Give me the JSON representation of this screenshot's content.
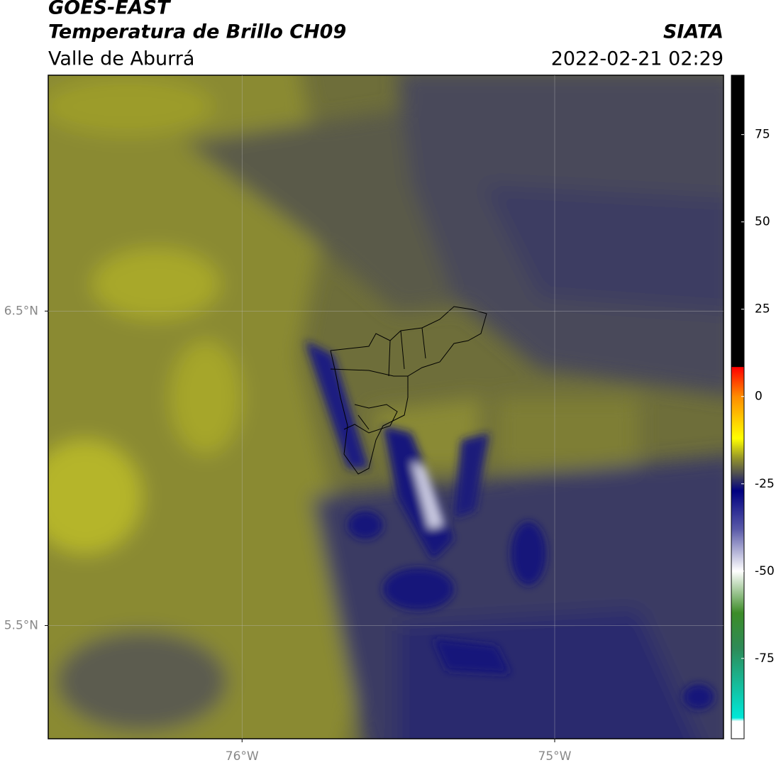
{
  "chart_data": {
    "type": "contour-map",
    "title": "GOES-EAST",
    "subtitle": "Temperatura de Brillo CH09",
    "region": "Valle de Aburrá",
    "source": "SIATA",
    "datetime": "2022-02-21 02:29",
    "xlim": [
      -76.62,
      -74.46
    ],
    "ylim": [
      5.14,
      7.25
    ],
    "xticks": [
      {
        "value": -76,
        "label": "76°W"
      },
      {
        "value": -75,
        "label": "75°W"
      }
    ],
    "yticks": [
      {
        "value": 6.5,
        "label": "6.5°N"
      },
      {
        "value": 5.5,
        "label": "5.5°N"
      }
    ],
    "grid": true,
    "colorbar": {
      "clim": [
        -98,
        92
      ],
      "ticks": [
        75,
        50,
        25,
        0,
        -25,
        -50,
        -75
      ],
      "stops": [
        {
          "value": 92,
          "color": "#000000"
        },
        {
          "value": 8.5,
          "color": "#000000"
        },
        {
          "value": 8.4,
          "color": "#ff0000"
        },
        {
          "value": 0,
          "color": "#ff8c00"
        },
        {
          "value": -12,
          "color": "#ffff00"
        },
        {
          "value": -18,
          "color": "#8e8e2c"
        },
        {
          "value": -22,
          "color": "#505050"
        },
        {
          "value": -27,
          "color": "#000080"
        },
        {
          "value": -38,
          "color": "#5a5aa8"
        },
        {
          "value": -50,
          "color": "#ffffff"
        },
        {
          "value": -62,
          "color": "#3c8c28"
        },
        {
          "value": -72,
          "color": "#2e8b57"
        },
        {
          "value": -92,
          "color": "#00e8d8"
        },
        {
          "value": -93,
          "color": "#ffffff"
        },
        {
          "value": -98,
          "color": "#ffffff"
        }
      ]
    }
  }
}
